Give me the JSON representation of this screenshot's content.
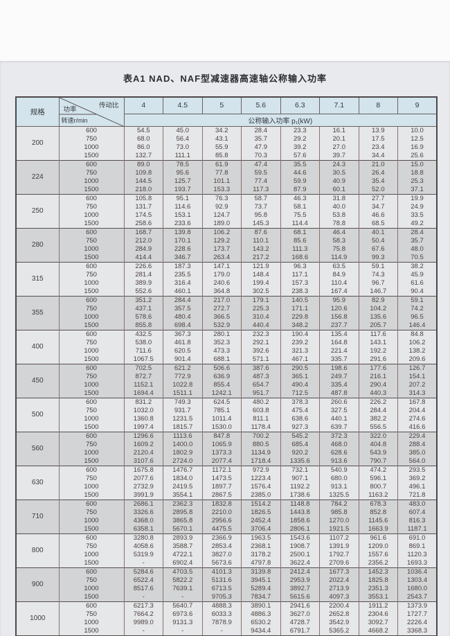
{
  "title": "表A1  NAD、NAF型减速器高速轴公称输入功率",
  "table": {
    "corner": {
      "spec_label": "规格",
      "ratio_label": "传动比",
      "power_label": "功率",
      "speed_label": "转速r/min"
    },
    "ratios": [
      "4",
      "4.5",
      "5",
      "5.6",
      "6.3",
      "7.1",
      "8",
      "9"
    ],
    "power_header": "公称输入功率 p₁(kW)",
    "speeds": [
      "600",
      "750",
      "1000",
      "1500"
    ],
    "groups": [
      {
        "spec": "200",
        "rows": [
          [
            "54.5",
            "45.0",
            "34.2",
            "28.4",
            "23.3",
            "16.1",
            "13.9",
            "10.0"
          ],
          [
            "68.0",
            "56.4",
            "43.1",
            "35.7",
            "29.2",
            "20.1",
            "17.5",
            "12.5"
          ],
          [
            "86.0",
            "73.0",
            "55.9",
            "47.9",
            "39.2",
            "27.0",
            "23.4",
            "16.9"
          ],
          [
            "132.7",
            "111.1",
            "85.8",
            "70.3",
            "57.6",
            "39.7",
            "34.4",
            "25.6"
          ]
        ]
      },
      {
        "spec": "224",
        "rows": [
          [
            "89.0",
            "78.5",
            "61.9",
            "47.4",
            "35.5",
            "24.3",
            "21.0",
            "15.0"
          ],
          [
            "109.8",
            "95.6",
            "77.8",
            "59.5",
            "44.6",
            "30.5",
            "26.4",
            "18.8"
          ],
          [
            "144.5",
            "125.7",
            "101.1",
            "77.4",
            "59.9",
            "40.9",
            "35.4",
            "25.3"
          ],
          [
            "218.0",
            "193.7",
            "153.3",
            "117.3",
            "87.9",
            "60.1",
            "52.0",
            "37.1"
          ]
        ]
      },
      {
        "spec": "250",
        "rows": [
          [
            "105.8",
            "95.1",
            "76.3",
            "58.7",
            "46.3",
            "31.8",
            "27.7",
            "19.9"
          ],
          [
            "131.7",
            "114.6",
            "92.9",
            "73.7",
            "58.1",
            "40.0",
            "34.7",
            "24.9"
          ],
          [
            "174.5",
            "153.1",
            "124.7",
            "95.8",
            "75.5",
            "53.8",
            "46.6",
            "33.5"
          ],
          [
            "258.6",
            "233.6",
            "189.0",
            "145.3",
            "114.4",
            "78.8",
            "68.5",
            "49.2"
          ]
        ]
      },
      {
        "spec": "280",
        "rows": [
          [
            "168.7",
            "139.8",
            "106.2",
            "87.6",
            "68.1",
            "46.4",
            "40.1",
            "28.4"
          ],
          [
            "212.0",
            "170.1",
            "129.2",
            "110.1",
            "85.6",
            "58.3",
            "50.4",
            "35.7"
          ],
          [
            "284.9",
            "228.6",
            "173.7",
            "143.2",
            "111.3",
            "75.8",
            "67.6",
            "48.0"
          ],
          [
            "414.4",
            "346.7",
            "263.4",
            "217.2",
            "168.6",
            "114.9",
            "99.3",
            "70.5"
          ]
        ]
      },
      {
        "spec": "315",
        "rows": [
          [
            "226.6",
            "187.3",
            "147.1",
            "121.9",
            "96.3",
            "63.5",
            "59.1",
            "38.2"
          ],
          [
            "281.4",
            "235.5",
            "179.0",
            "148.4",
            "117.1",
            "84.9",
            "74.3",
            "45.9"
          ],
          [
            "389.9",
            "316.4",
            "240.6",
            "199.4",
            "157.3",
            "110.4",
            "96.7",
            "61.6"
          ],
          [
            "552.6",
            "460.1",
            "364.8",
            "302.5",
            "238.3",
            "167.4",
            "146.7",
            "90.4"
          ]
        ]
      },
      {
        "spec": "355",
        "rows": [
          [
            "351.2",
            "284.4",
            "217.0",
            "179.1",
            "140.5",
            "95.9",
            "82.9",
            "59.1"
          ],
          [
            "437.1",
            "357.5",
            "272.7",
            "225.3",
            "171.1",
            "120.6",
            "104.2",
            "74.2"
          ],
          [
            "578.6",
            "480.4",
            "366.5",
            "310.4",
            "229.8",
            "156.8",
            "135.6",
            "96.5"
          ],
          [
            "855.8",
            "698.4",
            "532.9",
            "440.4",
            "348.2",
            "237.7",
            "205.7",
            "146.4"
          ]
        ]
      },
      {
        "spec": "400",
        "rows": [
          [
            "432.5",
            "367.3",
            "280.1",
            "232.3",
            "190.4",
            "135.4",
            "117.6",
            "84.8"
          ],
          [
            "538.0",
            "461.8",
            "352.3",
            "292.1",
            "239.2",
            "164.8",
            "143.1",
            "106.2"
          ],
          [
            "711.6",
            "620.5",
            "473.3",
            "392.6",
            "321.3",
            "221.4",
            "192.2",
            "138.2"
          ],
          [
            "1067.5",
            "901.4",
            "688.1",
            "571.1",
            "467.1",
            "335.7",
            "291.6",
            "209.6"
          ]
        ]
      },
      {
        "spec": "450",
        "rows": [
          [
            "702.5",
            "621.2",
            "506.6",
            "387.6",
            "290.5",
            "198.6",
            "177.6",
            "126.7"
          ],
          [
            "872.7",
            "772.9",
            "636.9",
            "487.3",
            "365.1",
            "249.7",
            "216.1",
            "154.1"
          ],
          [
            "1152.1",
            "1022.8",
            "855.4",
            "654.7",
            "490.4",
            "335.4",
            "290.4",
            "207.2"
          ],
          [
            "1694.4",
            "1511.1",
            "1242.1",
            "951.7",
            "712.5",
            "487.8",
            "440.3",
            "314.3"
          ]
        ]
      },
      {
        "spec": "500",
        "rows": [
          [
            "831.2",
            "749.3",
            "624.5",
            "480.2",
            "378.3",
            "260.6",
            "226.2",
            "167.8"
          ],
          [
            "1032.0",
            "931.7",
            "785.1",
            "603.8",
            "475.4",
            "327.5",
            "284.4",
            "204.4"
          ],
          [
            "1360.8",
            "1231.5",
            "1011.4",
            "811.1",
            "638.6",
            "440.1",
            "382.2",
            "274.6"
          ],
          [
            "1997.4",
            "1815.7",
            "1530.0",
            "1178.4",
            "927.3",
            "639.7",
            "556.5",
            "416.6"
          ]
        ]
      },
      {
        "spec": "560",
        "rows": [
          [
            "1296.6",
            "1113.6",
            "847.8",
            "700.2",
            "545.2",
            "372.3",
            "322.0",
            "229.4"
          ],
          [
            "1609.2",
            "1400.0",
            "1065.9",
            "880.5",
            "685.4",
            "468.0",
            "404.8",
            "288.4"
          ],
          [
            "2120.4",
            "1802.9",
            "1373.3",
            "1134.9",
            "920.2",
            "628.6",
            "543.9",
            "385.0"
          ],
          [
            "3107.6",
            "2724.0",
            "2077.4",
            "1718.4",
            "1335.6",
            "913.6",
            "790.7",
            "564.0"
          ]
        ]
      },
      {
        "spec": "630",
        "rows": [
          [
            "1675.8",
            "1476.7",
            "1172.1",
            "972.9",
            "732.1",
            "540.9",
            "474.2",
            "293.5"
          ],
          [
            "2077.6",
            "1834.0",
            "1473.5",
            "1223.4",
            "907.1",
            "680.0",
            "596.1",
            "369.2"
          ],
          [
            "2732.9",
            "2419.5",
            "1897.7",
            "1576.4",
            "1192.2",
            "913.1",
            "800.7",
            "496.1"
          ],
          [
            "3991.9",
            "3554.1",
            "2867.5",
            "2385.0",
            "1738.6",
            "1325.5",
            "1163.2",
            "721.8"
          ]
        ]
      },
      {
        "spec": "710",
        "rows": [
          [
            "2686.1",
            "2362.3",
            "1832.8",
            "1514.2",
            "1148.8",
            "784.2",
            "678.3",
            "483.0"
          ],
          [
            "3326.6",
            "2895.8",
            "2210.0",
            "1826.5",
            "1443.8",
            "985.8",
            "852.8",
            "607.4"
          ],
          [
            "4368.0",
            "3865.8",
            "2956.6",
            "2452.4",
            "1858.6",
            "1270.0",
            "1145.6",
            "816.3"
          ],
          [
            "6358.1",
            "5670.1",
            "4475.5",
            "3706.4",
            "2806.1",
            "1921.5",
            "1663.9",
            "1187.1"
          ]
        ]
      },
      {
        "spec": "800",
        "rows": [
          [
            "3280.8",
            "2893.9",
            "2366.9",
            "1963.5",
            "1543.6",
            "1107.2",
            "961.6",
            "691.0"
          ],
          [
            "4058.6",
            "3588.7",
            "2853.4",
            "2368.1",
            "1908.7",
            "1391.9",
            "1209.0",
            "869.1"
          ],
          [
            "5319.9",
            "4722.1",
            "3827.0",
            "3178.2",
            "2500.1",
            "1792.7",
            "1557.6",
            "1120.3"
          ],
          [
            "-",
            "6902.4",
            "5673.6",
            "4797.8",
            "3622.4",
            "2709.6",
            "2356.2",
            "1693.3"
          ]
        ]
      },
      {
        "spec": "900",
        "rows": [
          [
            "5284.6",
            "4703.5",
            "4101.3",
            "3139.8",
            "2412.4",
            "1677.3",
            "1452.3",
            "1036.4"
          ],
          [
            "6522.4",
            "5822.2",
            "5131.6",
            "3945.1",
            "2953.9",
            "2022.4",
            "1825.8",
            "1303.4"
          ],
          [
            "8517.6",
            "7639.1",
            "6713.5",
            "5289.4",
            "3892.7",
            "2713.9",
            "2351.3",
            "1680.0"
          ],
          [
            "-",
            "-",
            "9705.3",
            "7834.7",
            "5615.6",
            "4097.3",
            "3553.1",
            "2543.7"
          ]
        ]
      },
      {
        "spec": "1000",
        "rows": [
          [
            "6217.3",
            "5640.7",
            "4888.3",
            "3890.1",
            "2941.6",
            "2200.4",
            "1911.2",
            "1373.9"
          ],
          [
            "7664.2",
            "6973.6",
            "6033.3",
            "4886.3",
            "3627.0",
            "2652.8",
            "2304.6",
            "1727.7"
          ],
          [
            "9989.0",
            "9131.3",
            "7878.9",
            "6530.2",
            "4728.7",
            "3542.9",
            "3092.7",
            "2226.4"
          ],
          [
            "-",
            "-",
            "-",
            "9434.4",
            "6791.7",
            "5365.2",
            "4668.2",
            "3368.3"
          ]
        ]
      }
    ]
  },
  "colors": {
    "page_background": "#e8eaed",
    "header_blue": "#d3e4ec",
    "band_light": "#e5e7e9",
    "band_grey": "#d2d4d5",
    "border_dark": "#574c50",
    "border_vertical": "#8a7069",
    "number_text": "#4d403e"
  }
}
